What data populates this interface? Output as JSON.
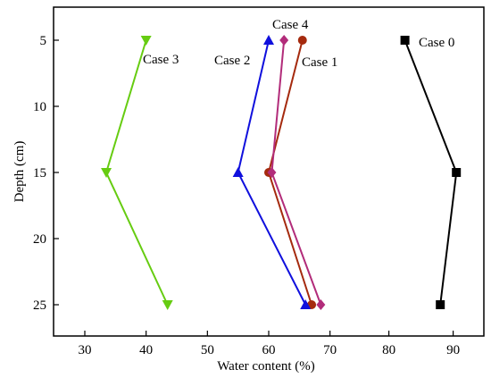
{
  "chart_data": {
    "type": "line",
    "xlabel": "Water content (%)",
    "ylabel": "Depth (cm)",
    "xlim": [
      25,
      73
    ],
    "ylim": [
      3,
      27.5
    ],
    "y_inverted": true,
    "x_ticks": [
      30,
      40,
      50,
      60,
      70,
      80,
      90
    ],
    "y_ticks": [
      5,
      10,
      15,
      20,
      25
    ],
    "grid": false,
    "legend": "none",
    "x_axis_break": [
      70,
      80
    ],
    "series": [
      {
        "name": "Case 0",
        "color": "#000000",
        "marker": "square",
        "points": [
          {
            "x": 82.5,
            "y": 5
          },
          {
            "x": 90.5,
            "y": 15
          },
          {
            "x": 88,
            "y": 25
          }
        ]
      },
      {
        "name": "Case 1",
        "color": "#a52a0e",
        "marker": "circle",
        "points": [
          {
            "x": 65.5,
            "y": 5
          },
          {
            "x": 60,
            "y": 15
          },
          {
            "x": 67,
            "y": 25
          }
        ]
      },
      {
        "name": "Case 2",
        "color": "#1010dd",
        "marker": "triangle-up",
        "points": [
          {
            "x": 60,
            "y": 5
          },
          {
            "x": 55,
            "y": 15
          },
          {
            "x": 66,
            "y": 25
          }
        ]
      },
      {
        "name": "Case 3",
        "color": "#66cc11",
        "marker": "triangle-down",
        "points": [
          {
            "x": 40,
            "y": 5
          },
          {
            "x": 33.5,
            "y": 15
          },
          {
            "x": 43.5,
            "y": 25
          }
        ]
      },
      {
        "name": "Case 4",
        "color": "#b22c7a",
        "marker": "diamond",
        "points": [
          {
            "x": 62.5,
            "y": 5
          },
          {
            "x": 60.5,
            "y": 15
          },
          {
            "x": 68.5,
            "y": 25
          }
        ]
      }
    ]
  }
}
